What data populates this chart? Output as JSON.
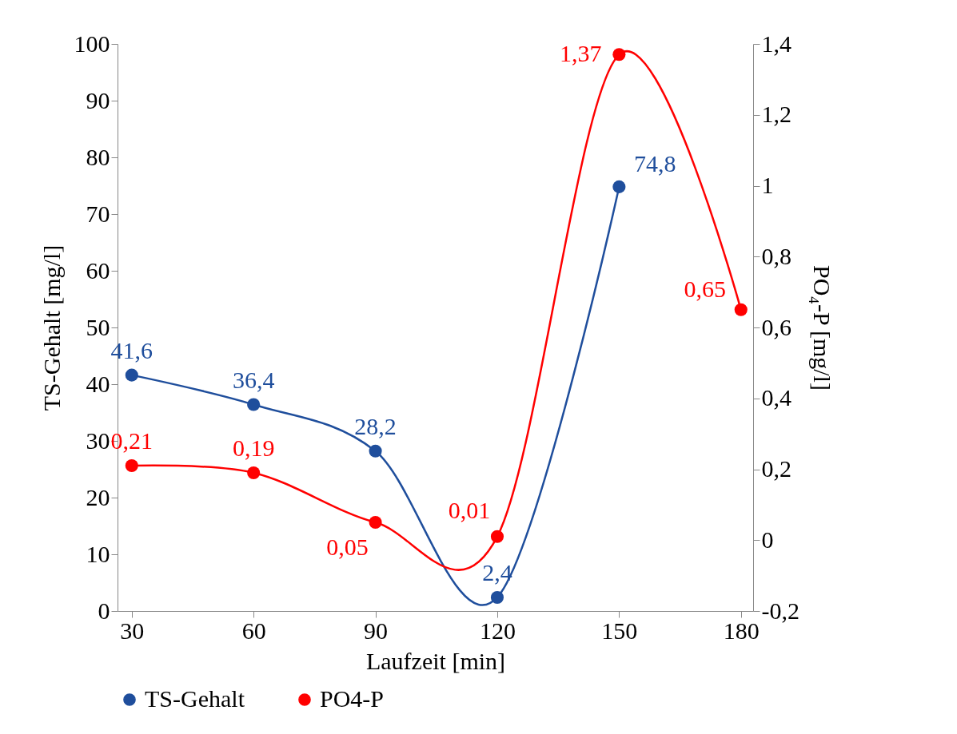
{
  "chart_data": {
    "type": "line",
    "xlabel": "Laufzeit [min]",
    "ylabel": "TS-Gehalt [mg/l]",
    "y2label": "PO₄-P [mg/l]",
    "x": [
      30,
      60,
      90,
      120,
      150,
      180
    ],
    "series": [
      {
        "name": "TS-Gehalt",
        "color": "#1f4e9c",
        "values": [
          41.6,
          36.4,
          28.2,
          2.4,
          74.8,
          null
        ],
        "value_labels": [
          "41,6",
          "36,4",
          "28,2",
          "2,4",
          "74,8",
          null
        ]
      },
      {
        "name": "PO4-P",
        "color": "#ff0000",
        "axis": "y2",
        "values": [
          0.21,
          0.19,
          0.05,
          0.01,
          1.37,
          0.65
        ],
        "value_labels": [
          "0,21",
          "0,19",
          "0,05",
          "0,01",
          "1,37",
          "0,65"
        ]
      }
    ],
    "xlim": [
      26.5,
      183
    ],
    "xticks": [
      30,
      60,
      90,
      120,
      150,
      180
    ],
    "ylim": [
      0,
      100
    ],
    "yticks": [
      0,
      10,
      20,
      30,
      40,
      50,
      60,
      70,
      80,
      90,
      100
    ],
    "y2lim": [
      -0.2,
      1.4
    ],
    "y2ticks": [
      {
        "value": -0.2,
        "label": "-0,2"
      },
      0,
      {
        "value": 0.2,
        "label": "0,2"
      },
      {
        "value": 0.4,
        "label": "0,4"
      },
      {
        "value": 0.6,
        "label": "0,6"
      },
      {
        "value": 0.8,
        "label": "0,8"
      },
      1,
      {
        "value": 1.2,
        "label": "1,2"
      },
      {
        "value": 1.4,
        "label": "1,4"
      }
    ],
    "marker": "circle",
    "legend": "bottom",
    "grid": false
  }
}
